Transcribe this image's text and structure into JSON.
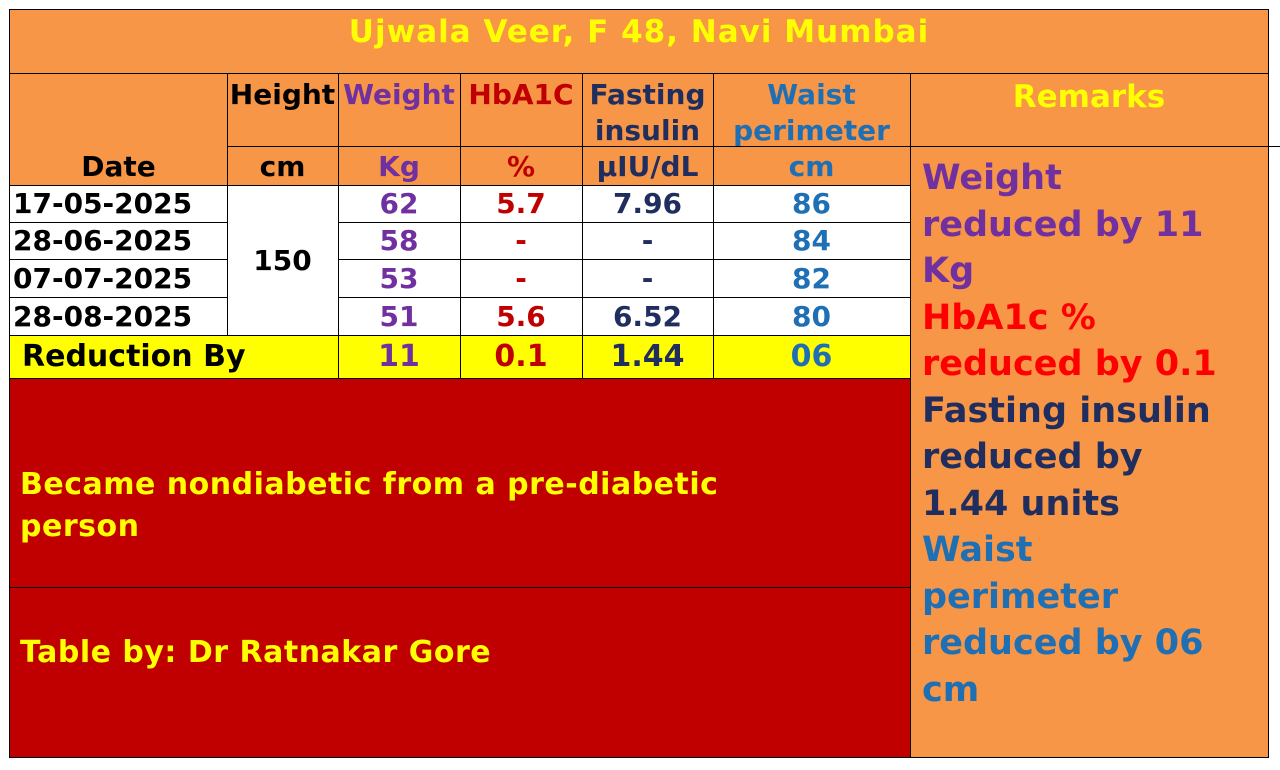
{
  "title": "Ujwala Veer, F 48, Navi Mumbai",
  "headers": {
    "date": "Date",
    "height": "Height",
    "height_unit": "cm",
    "weight": "Weight",
    "weight_unit": "Kg",
    "hba1c": "HbA1C",
    "hba1c_unit": "%",
    "insulin_line1": "Fasting",
    "insulin_line2": "insulin",
    "insulin_unit": "µIU/dL",
    "waist_line1": "Waist",
    "waist_line2": "perimeter",
    "waist_unit": "cm",
    "remarks": "Remarks"
  },
  "height_value": "150",
  "rows": [
    {
      "date": "17-05-2025",
      "weight": "62",
      "hba1c": "5.7",
      "insulin": "7.96",
      "waist": "86"
    },
    {
      "date": "28-06-2025",
      "weight": "58",
      "hba1c": "-",
      "insulin": "-",
      "waist": "84"
    },
    {
      "date": "07-07-2025",
      "weight": "53",
      "hba1c": "-",
      "insulin": "-",
      "waist": "82"
    },
    {
      "date": "28-08-2025",
      "weight": "51",
      "hba1c": "5.6",
      "insulin": "6.52",
      "waist": "80"
    }
  ],
  "reduction": {
    "label": "Reduction By",
    "weight": "11",
    "hba1c": "0.1",
    "insulin": "1.44",
    "waist": "06"
  },
  "note": "Became nondiabetic from a pre-diabetic person",
  "credit": "Table by: Dr Ratnakar Gore",
  "remarks": {
    "weight": [
      "Weight",
      "reduced by 11",
      "Kg"
    ],
    "hba1c": [
      "HbA1c %",
      "reduced by 0.1"
    ],
    "insulin": [
      "Fasting insulin",
      "reduced by",
      "1.44 units"
    ],
    "waist": [
      "Waist",
      "perimeter",
      "reduced by 06",
      "cm"
    ]
  },
  "colors": {
    "orange": "#F79646",
    "dark_red": "#C00000",
    "yellow": "#FFFF00",
    "purple": "#7030A0",
    "navy": "#1F2E5E",
    "blue": "#1F6FB4"
  }
}
